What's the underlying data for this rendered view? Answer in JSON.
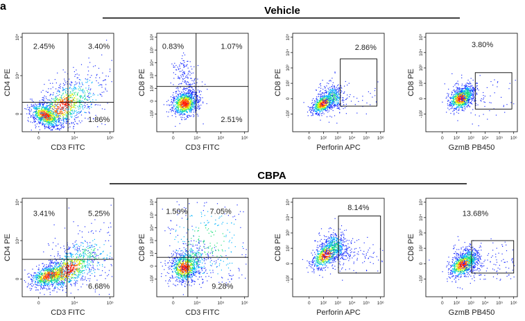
{
  "panel_letter": "a",
  "groups": [
    {
      "title": "Vehicle"
    },
    {
      "title": "CBPA"
    }
  ],
  "chart_data": [
    {
      "type": "scatter",
      "group": "Vehicle",
      "plot": "quadrant",
      "xlabel": "CD3 FITC",
      "ylabel": "CD4 PE",
      "xticks": [
        "0",
        "10⁴",
        "10⁵"
      ],
      "yticks": [
        "0",
        "10⁴",
        "10⁵"
      ],
      "quadrant_labels": {
        "UL": "2.45%",
        "UR": "3.40%",
        "LR": "1.86%"
      },
      "population": "dense cluster near origin extending diagonally up-right"
    },
    {
      "type": "scatter",
      "group": "Vehicle",
      "plot": "quadrant",
      "xlabel": "CD3 FITC",
      "ylabel": "CD8 PE",
      "xticks": [
        "0",
        "10⁴",
        "10⁵",
        "10⁶"
      ],
      "yticks": [
        "-10²",
        "0",
        "10²",
        "10³",
        "10⁴",
        "10⁵",
        "10⁶"
      ],
      "quadrant_labels": {
        "UL": "0.83%",
        "UR": "1.07%",
        "LR": "2.51%"
      },
      "population": "compact cluster with a small upward tail"
    },
    {
      "type": "scatter",
      "group": "Vehicle",
      "plot": "gate",
      "xlabel": "Perforin APC",
      "ylabel": "CD8 PE",
      "xticks": [
        "0",
        "10²",
        "10³",
        "10⁴",
        "10⁵",
        "10⁶"
      ],
      "yticks": [
        "-10²",
        "0",
        "10²",
        "10³",
        "10⁴",
        "10⁵"
      ],
      "gate_label": "2.86%"
    },
    {
      "type": "scatter",
      "group": "Vehicle",
      "plot": "gate",
      "xlabel": "GzmB PB450",
      "ylabel": "CD8 PE",
      "xticks": [
        "0",
        "10²",
        "10³",
        "10⁴",
        "10⁵",
        "10⁶"
      ],
      "yticks": [
        "-10²",
        "0",
        "10²",
        "10³",
        "10⁴",
        "10⁵"
      ],
      "gate_label": "3.80%"
    },
    {
      "type": "scatter",
      "group": "CBPA",
      "plot": "quadrant",
      "xlabel": "CD3 FITC",
      "ylabel": "CD4 PE",
      "xticks": [
        "0",
        "10⁴",
        "10⁵"
      ],
      "yticks": [
        "0",
        "10⁴",
        "10⁵"
      ],
      "quadrant_labels": {
        "UL": "3.41%",
        "UR": "5.25%",
        "LR": "6.68%"
      },
      "population": "broad cluster near origin extending to the right"
    },
    {
      "type": "scatter",
      "group": "CBPA",
      "plot": "quadrant",
      "xlabel": "CD3 FITC",
      "ylabel": "CD8 PE",
      "xticks": [
        "0",
        "10⁴",
        "10⁵",
        "10⁶"
      ],
      "yticks": [
        "-10²",
        "0",
        "10²",
        "10³",
        "10⁴",
        "10⁵",
        "10⁶"
      ],
      "quadrant_labels": {
        "UL": "1.50%",
        "UR": "7.05%",
        "LR": "9.28%"
      },
      "population": "cluster with diffuse spread to upper right"
    },
    {
      "type": "scatter",
      "group": "CBPA",
      "plot": "gate",
      "xlabel": "Perforin APC",
      "ylabel": "CD8 PE",
      "xticks": [
        "0",
        "10²",
        "10³",
        "10⁴",
        "10⁵",
        "10⁶"
      ],
      "yticks": [
        "-10²",
        "0",
        "10²",
        "10³",
        "10⁴",
        "10⁵"
      ],
      "gate_label": "8.14%"
    },
    {
      "type": "scatter",
      "group": "CBPA",
      "plot": "gate",
      "xlabel": "GzmB PB450",
      "ylabel": "CD8 PE",
      "xticks": [
        "0",
        "10²",
        "10³",
        "10⁴",
        "10⁵",
        "10⁶"
      ],
      "yticks": [
        "-10²",
        "0",
        "10²",
        "10³",
        "10⁴",
        "10⁵"
      ],
      "gate_label": "13.68%"
    }
  ],
  "colors": {
    "sparse": "#1a2cff",
    "mid1": "#00b4ff",
    "mid2": "#19e07a",
    "mid3": "#d8f000",
    "core": "#ff6a00",
    "hot": "#ff1a00",
    "line": "#000000"
  }
}
